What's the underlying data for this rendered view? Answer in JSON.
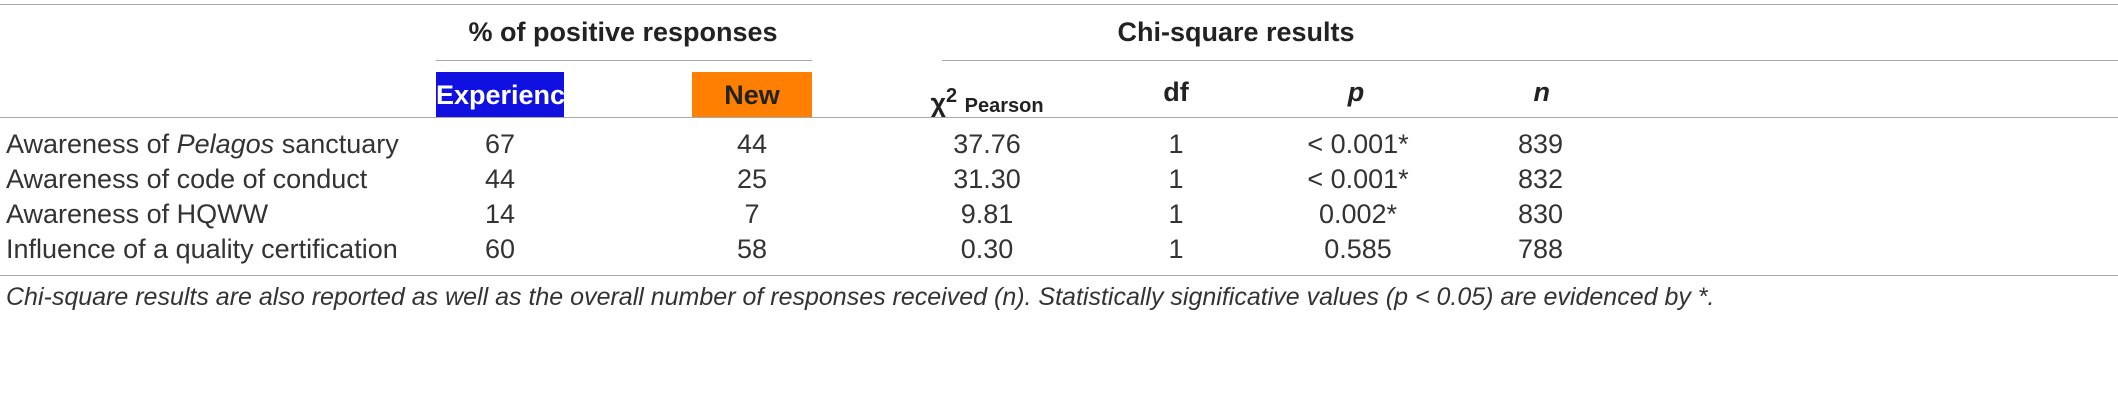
{
  "header": {
    "group_left": "% of positive responses",
    "group_right": "Chi-square results",
    "experienced": "Experienced",
    "new": "New",
    "chi_symbol": "χ",
    "chi_sup": "2",
    "chi_sub": "Pearson",
    "df": "df",
    "p": "p",
    "n": "n"
  },
  "colors": {
    "experienced_bg": "#1010e0",
    "new_bg": "#ff8000"
  },
  "rows": [
    {
      "label_pre": "Awareness of ",
      "label_italic": "Pelagos",
      "label_post": " sanctuary",
      "experienced": "67",
      "new": "44",
      "chi": "37.76",
      "df": "1",
      "p": "< 0.001*",
      "n": "839"
    },
    {
      "label_pre": "Awareness of code of conduct",
      "label_italic": "",
      "label_post": "",
      "experienced": "44",
      "new": "25",
      "chi": "31.30",
      "df": "1",
      "p": "< 0.001*",
      "n": "832"
    },
    {
      "label_pre": "Awareness of HQWW",
      "label_italic": "",
      "label_post": "",
      "experienced": "14",
      "new": "7",
      "chi": "9.81",
      "df": "1",
      "p": "0.002*",
      "n": "830"
    },
    {
      "label_pre": "Influence of a quality certification",
      "label_italic": "",
      "label_post": "",
      "experienced": "60",
      "new": "58",
      "chi": "0.30",
      "df": "1",
      "p": "0.585",
      "n": "788"
    }
  ],
  "footnote": "Chi-square results are also reported as well as the overall number of responses received (n). Statistically significative values (p < 0.05) are evidenced by *."
}
